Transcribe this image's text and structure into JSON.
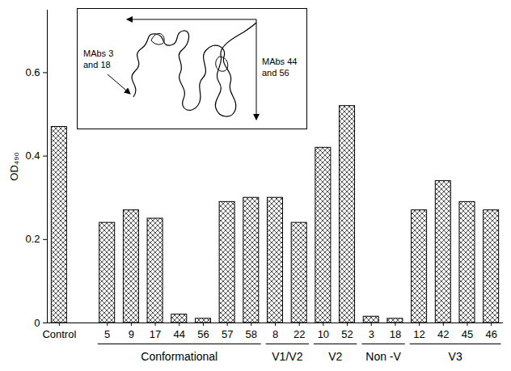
{
  "chart_data": {
    "type": "bar",
    "y_label": "OD₄₉₀",
    "categories": [
      "Control",
      null,
      "5",
      "9",
      "17",
      "44",
      "56",
      "57",
      "58",
      "8",
      "22",
      "10",
      "52",
      "3",
      "18",
      "12",
      "42",
      "45",
      "46"
    ],
    "values": [
      0.47,
      null,
      0.24,
      0.27,
      0.25,
      0.02,
      0.01,
      0.29,
      0.3,
      0.3,
      0.24,
      0.42,
      0.52,
      0.015,
      0.01,
      0.27,
      0.34,
      0.29,
      0.27
    ],
    "color": "#555555",
    "ylim": [
      0,
      0.75
    ],
    "yticks": [
      0,
      0.2,
      0.4,
      0.6
    ],
    "groups": [
      {
        "label": "Conformational",
        "categories": [
          "5",
          "9",
          "17",
          "44",
          "56",
          "57",
          "58"
        ]
      },
      {
        "label": "V1/V2",
        "categories": [
          "8",
          "22"
        ]
      },
      {
        "label": "V2",
        "categories": [
          "10",
          "52"
        ]
      },
      {
        "label": "Non -V",
        "categories": [
          "3",
          "18"
        ]
      },
      {
        "label": "V3",
        "categories": [
          "12",
          "42",
          "45",
          "46"
        ]
      }
    ],
    "annotations": [
      "MAbs 44 and 56",
      "MAbs 3 and 18"
    ]
  }
}
